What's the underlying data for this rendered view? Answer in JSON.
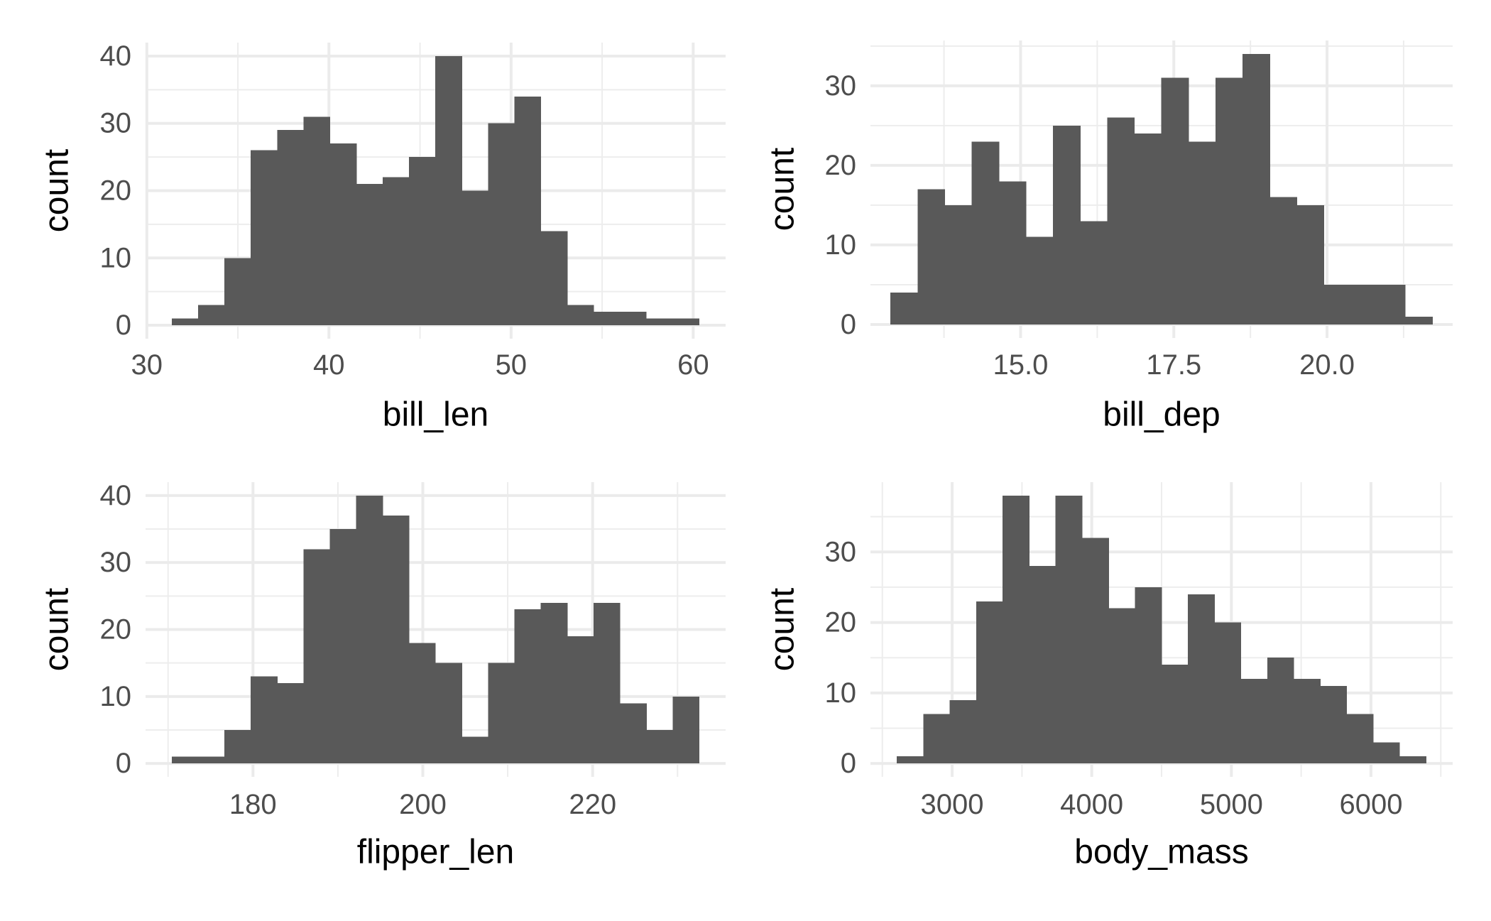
{
  "figure": {
    "kind": "2x2 grid of ggplot-style histograms",
    "background": "#FFFFFF"
  },
  "style": {
    "bar_color": "#595959",
    "grid_major_color": "#EBEBEB",
    "grid_minor_color": "#EDEDED",
    "tick_label_color": "#4D4D4D",
    "axis_title_color": "#000000"
  },
  "chart_data": [
    {
      "type": "bar",
      "subtype": "histogram",
      "panel": "top-left",
      "xlabel": "bill_len",
      "ylabel": "count",
      "bin_start": 31.38,
      "bin_width": 1.447,
      "values": [
        1,
        3,
        10,
        26,
        29,
        31,
        27,
        21,
        22,
        25,
        40,
        20,
        30,
        34,
        14,
        3,
        2,
        2,
        1,
        1
      ],
      "x_ticks": [
        {
          "value": 30,
          "label": "30"
        },
        {
          "value": 40,
          "label": "40"
        },
        {
          "value": 50,
          "label": "50"
        },
        {
          "value": 60,
          "label": "60"
        }
      ],
      "y_ticks": [
        {
          "value": 0,
          "label": "0"
        },
        {
          "value": 10,
          "label": "10"
        },
        {
          "value": 20,
          "label": "20"
        },
        {
          "value": 30,
          "label": "30"
        },
        {
          "value": 40,
          "label": "40"
        }
      ],
      "x_minor": [
        35,
        45,
        55
      ],
      "y_minor": [
        5,
        15,
        25,
        35
      ],
      "xlim": [
        29.93,
        61.78
      ],
      "ylim": [
        -2,
        42
      ],
      "grid": true,
      "legend": "none"
    },
    {
      "type": "bar",
      "subtype": "histogram",
      "panel": "top-right",
      "xlabel": "bill_dep",
      "ylabel": "count",
      "bin_start": 12.88,
      "bin_width": 0.442,
      "values": [
        4,
        17,
        15,
        23,
        18,
        11,
        25,
        13,
        26,
        24,
        31,
        23,
        31,
        34,
        16,
        15,
        5,
        5,
        5,
        1
      ],
      "x_ticks": [
        {
          "value": 15,
          "label": "15.0"
        },
        {
          "value": 17.5,
          "label": "17.5"
        },
        {
          "value": 20,
          "label": "20.0"
        }
      ],
      "y_ticks": [
        {
          "value": 0,
          "label": "0"
        },
        {
          "value": 10,
          "label": "10"
        },
        {
          "value": 20,
          "label": "20"
        },
        {
          "value": 30,
          "label": "30"
        }
      ],
      "x_minor": [
        13.75,
        16.25,
        18.75,
        21.25
      ],
      "y_minor": [
        5,
        15,
        25,
        35
      ],
      "xlim": [
        12.55,
        22.05
      ],
      "ylim": [
        -1.7,
        35.7
      ],
      "grid": true,
      "legend": "none"
    },
    {
      "type": "bar",
      "subtype": "histogram",
      "panel": "bottom-left",
      "xlabel": "flipper_len",
      "ylabel": "count",
      "bin_start": 170.45,
      "bin_width": 3.105,
      "values": [
        1,
        1,
        5,
        13,
        12,
        32,
        35,
        40,
        37,
        18,
        15,
        4,
        15,
        23,
        24,
        19,
        24,
        9,
        5,
        10
      ],
      "x_ticks": [
        {
          "value": 180,
          "label": "180"
        },
        {
          "value": 200,
          "label": "200"
        },
        {
          "value": 220,
          "label": "220"
        }
      ],
      "y_ticks": [
        {
          "value": 0,
          "label": "0"
        },
        {
          "value": 10,
          "label": "10"
        },
        {
          "value": 20,
          "label": "20"
        },
        {
          "value": 30,
          "label": "30"
        },
        {
          "value": 40,
          "label": "40"
        }
      ],
      "x_minor": [
        170,
        190,
        210,
        230
      ],
      "y_minor": [
        5,
        15,
        25,
        35
      ],
      "xlim": [
        167.35,
        235.66
      ],
      "ylim": [
        -2,
        42
      ],
      "grid": true,
      "legend": "none"
    },
    {
      "type": "bar",
      "subtype": "histogram",
      "panel": "bottom-right",
      "xlabel": "body_mass",
      "ylabel": "count",
      "bin_start": 2605,
      "bin_width": 189.5,
      "values": [
        1,
        7,
        9,
        23,
        38,
        28,
        38,
        32,
        22,
        25,
        14,
        24,
        20,
        12,
        15,
        12,
        11,
        7,
        3,
        1
      ],
      "x_ticks": [
        {
          "value": 3000,
          "label": "3000"
        },
        {
          "value": 4000,
          "label": "4000"
        },
        {
          "value": 5000,
          "label": "5000"
        },
        {
          "value": 6000,
          "label": "6000"
        }
      ],
      "y_ticks": [
        {
          "value": 0,
          "label": "0"
        },
        {
          "value": 10,
          "label": "10"
        },
        {
          "value": 20,
          "label": "20"
        },
        {
          "value": 30,
          "label": "30"
        }
      ],
      "x_minor": [
        2500,
        3500,
        4500,
        5500,
        6500
      ],
      "y_minor": [
        5,
        15,
        25,
        35
      ],
      "xlim": [
        2415,
        6585
      ],
      "ylim": [
        -1.9,
        39.9
      ],
      "grid": true,
      "legend": "none"
    }
  ]
}
